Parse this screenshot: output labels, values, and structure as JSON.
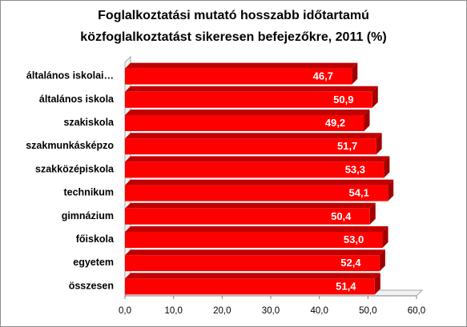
{
  "chart_data": {
    "type": "bar",
    "orientation": "horizontal",
    "title_lines": [
      "Foglalkoztatási mutató hosszabb időtartamú",
      "közfoglalkoztatást sikeresen befejezőkre, 2011 (%)"
    ],
    "categories": [
      "általános iskolai…",
      "általános iskola",
      "szakiskola",
      "szakmunkásképzo",
      "szakközépiskola",
      "technikum",
      "gimnázium",
      "főiskola",
      "egyetem",
      "összesen"
    ],
    "values": [
      46.7,
      50.9,
      49.2,
      51.7,
      53.3,
      54.1,
      50.4,
      53.0,
      52.4,
      51.4
    ],
    "value_labels": [
      "46,7",
      "50,9",
      "49,2",
      "51,7",
      "53,3",
      "54,1",
      "50,4",
      "53,0",
      "52,4",
      "51,4"
    ],
    "xlim": [
      0,
      60
    ],
    "x_ticks": [
      "0,0",
      "10,0",
      "20,0",
      "30,0",
      "40,0",
      "50,0",
      "60,0"
    ],
    "grid": false,
    "legend": "none",
    "bar_color": "#ff0000",
    "bar_side_color": "#a00000",
    "bar_top_color": "#c00000"
  }
}
